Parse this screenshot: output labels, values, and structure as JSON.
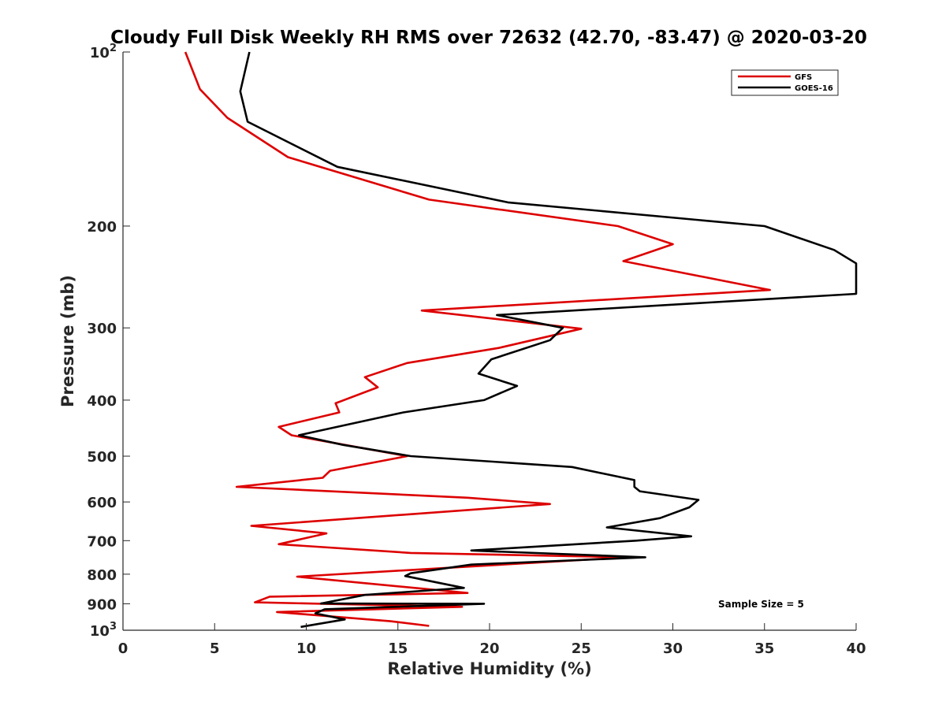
{
  "chart_data": {
    "type": "line",
    "title": "Cloudy Full Disk Weekly RH RMS over 72632 (42.70, -83.47) @ 2020-03-20",
    "xlabel": "Relative Humidity (%)",
    "ylabel": "Pressure (mb)",
    "xlim": [
      0,
      40
    ],
    "ylim": [
      100,
      1000
    ],
    "y_scale": "log",
    "y_reversed": true,
    "grid": false,
    "legend_position": "top-right",
    "annotation": "Sample Size = 5",
    "x_ticks": [
      {
        "value": 0,
        "label": "0"
      },
      {
        "value": 5,
        "label": "5"
      },
      {
        "value": 10,
        "label": "10"
      },
      {
        "value": 15,
        "label": "15"
      },
      {
        "value": 20,
        "label": "20"
      },
      {
        "value": 25,
        "label": "25"
      },
      {
        "value": 30,
        "label": "30"
      },
      {
        "value": 35,
        "label": "35"
      },
      {
        "value": 40,
        "label": "40"
      }
    ],
    "y_ticks": [
      {
        "value": 100,
        "label": "10",
        "sup": "2"
      },
      {
        "value": 200,
        "label": "200",
        "sup": ""
      },
      {
        "value": 300,
        "label": "300",
        "sup": ""
      },
      {
        "value": 400,
        "label": "400",
        "sup": ""
      },
      {
        "value": 500,
        "label": "500",
        "sup": ""
      },
      {
        "value": 600,
        "label": "600",
        "sup": ""
      },
      {
        "value": 700,
        "label": "700",
        "sup": ""
      },
      {
        "value": 800,
        "label": "800",
        "sup": ""
      },
      {
        "value": 900,
        "label": "900",
        "sup": ""
      },
      {
        "value": 1000,
        "label": "10",
        "sup": "3"
      }
    ],
    "series": [
      {
        "name": "GFS",
        "color": "#dd0000",
        "points": [
          [
            3.4,
            100
          ],
          [
            4.2,
            116
          ],
          [
            5.7,
            130
          ],
          [
            9.0,
            152
          ],
          [
            16.7,
            180
          ],
          [
            27.0,
            200
          ],
          [
            30.0,
            215
          ],
          [
            27.3,
            230
          ],
          [
            35.3,
            258
          ],
          [
            16.3,
            280
          ],
          [
            25.0,
            301
          ],
          [
            20.5,
            325
          ],
          [
            15.5,
            345
          ],
          [
            13.2,
            365
          ],
          [
            13.9,
            380
          ],
          [
            11.6,
            405
          ],
          [
            11.8,
            420
          ],
          [
            8.5,
            445
          ],
          [
            9.2,
            460
          ],
          [
            15.5,
            500
          ],
          [
            11.3,
            530
          ],
          [
            10.9,
            545
          ],
          [
            6.2,
            565
          ],
          [
            18.8,
            590
          ],
          [
            23.3,
            605
          ],
          [
            7.0,
            660
          ],
          [
            11.1,
            680
          ],
          [
            8.5,
            710
          ],
          [
            15.7,
            735
          ],
          [
            27.5,
            748
          ],
          [
            9.5,
            808
          ],
          [
            18.8,
            862
          ],
          [
            8.0,
            875
          ],
          [
            7.2,
            895
          ],
          [
            18.5,
            911
          ],
          [
            8.4,
            930
          ],
          [
            14.6,
            965
          ],
          [
            16.7,
            983
          ]
        ]
      },
      {
        "name": "GOES-16",
        "color": "#000000",
        "points": [
          [
            6.9,
            100
          ],
          [
            6.4,
            117
          ],
          [
            6.8,
            132
          ],
          [
            11.7,
            158
          ],
          [
            21.0,
            182
          ],
          [
            35.0,
            200
          ],
          [
            38.8,
            220
          ],
          [
            40.0,
            232
          ],
          [
            40.0,
            262
          ],
          [
            20.4,
            285
          ],
          [
            24.0,
            300
          ],
          [
            23.3,
            315
          ],
          [
            20.1,
            340
          ],
          [
            19.4,
            360
          ],
          [
            21.5,
            378
          ],
          [
            19.7,
            400
          ],
          [
            15.3,
            420
          ],
          [
            9.6,
            460
          ],
          [
            12.0,
            478
          ],
          [
            15.7,
            500
          ],
          [
            24.5,
            522
          ],
          [
            27.9,
            550
          ],
          [
            27.9,
            565
          ],
          [
            28.2,
            575
          ],
          [
            31.4,
            595
          ],
          [
            30.9,
            613
          ],
          [
            29.3,
            640
          ],
          [
            26.4,
            664
          ],
          [
            31.0,
            688
          ],
          [
            28.0,
            700
          ],
          [
            19.0,
            728
          ],
          [
            28.5,
            748
          ],
          [
            19.0,
            770
          ],
          [
            15.7,
            797
          ],
          [
            15.4,
            806
          ],
          [
            18.6,
            845
          ],
          [
            13.2,
            869
          ],
          [
            10.8,
            899
          ],
          [
            19.7,
            900
          ],
          [
            11.0,
            920
          ],
          [
            10.5,
            935
          ],
          [
            12.1,
            958
          ],
          [
            9.7,
            987
          ]
        ]
      }
    ]
  }
}
